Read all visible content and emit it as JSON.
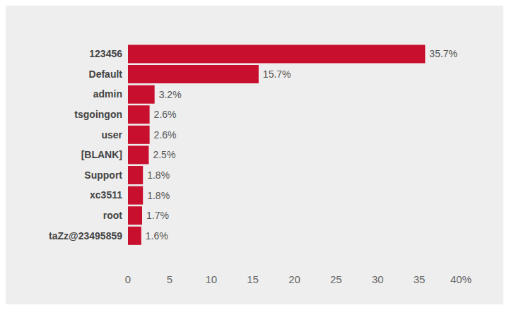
{
  "chart_data": {
    "type": "bar",
    "orientation": "horizontal",
    "categories": [
      "123456",
      "Default",
      "admin",
      "tsgoingon",
      "user",
      "[BLANK]",
      "Support",
      "xc3511",
      "root",
      "taZz@23495859"
    ],
    "values": [
      35.7,
      15.7,
      3.2,
      2.6,
      2.6,
      2.5,
      1.8,
      1.8,
      1.7,
      1.6
    ],
    "value_labels": [
      "35.7%",
      "15.7%",
      "3.2%",
      "2.6%",
      "2.6%",
      "2.5%",
      "1.8%",
      "1.8%",
      "1.7%",
      "1.6%"
    ],
    "data_labels": true,
    "color": "#c8102e",
    "xlim": [
      0,
      40
    ],
    "xticks": [
      0,
      5,
      10,
      15,
      20,
      25,
      30,
      35,
      {
        "value": 40,
        "label": "40%"
      }
    ],
    "grid": false
  }
}
